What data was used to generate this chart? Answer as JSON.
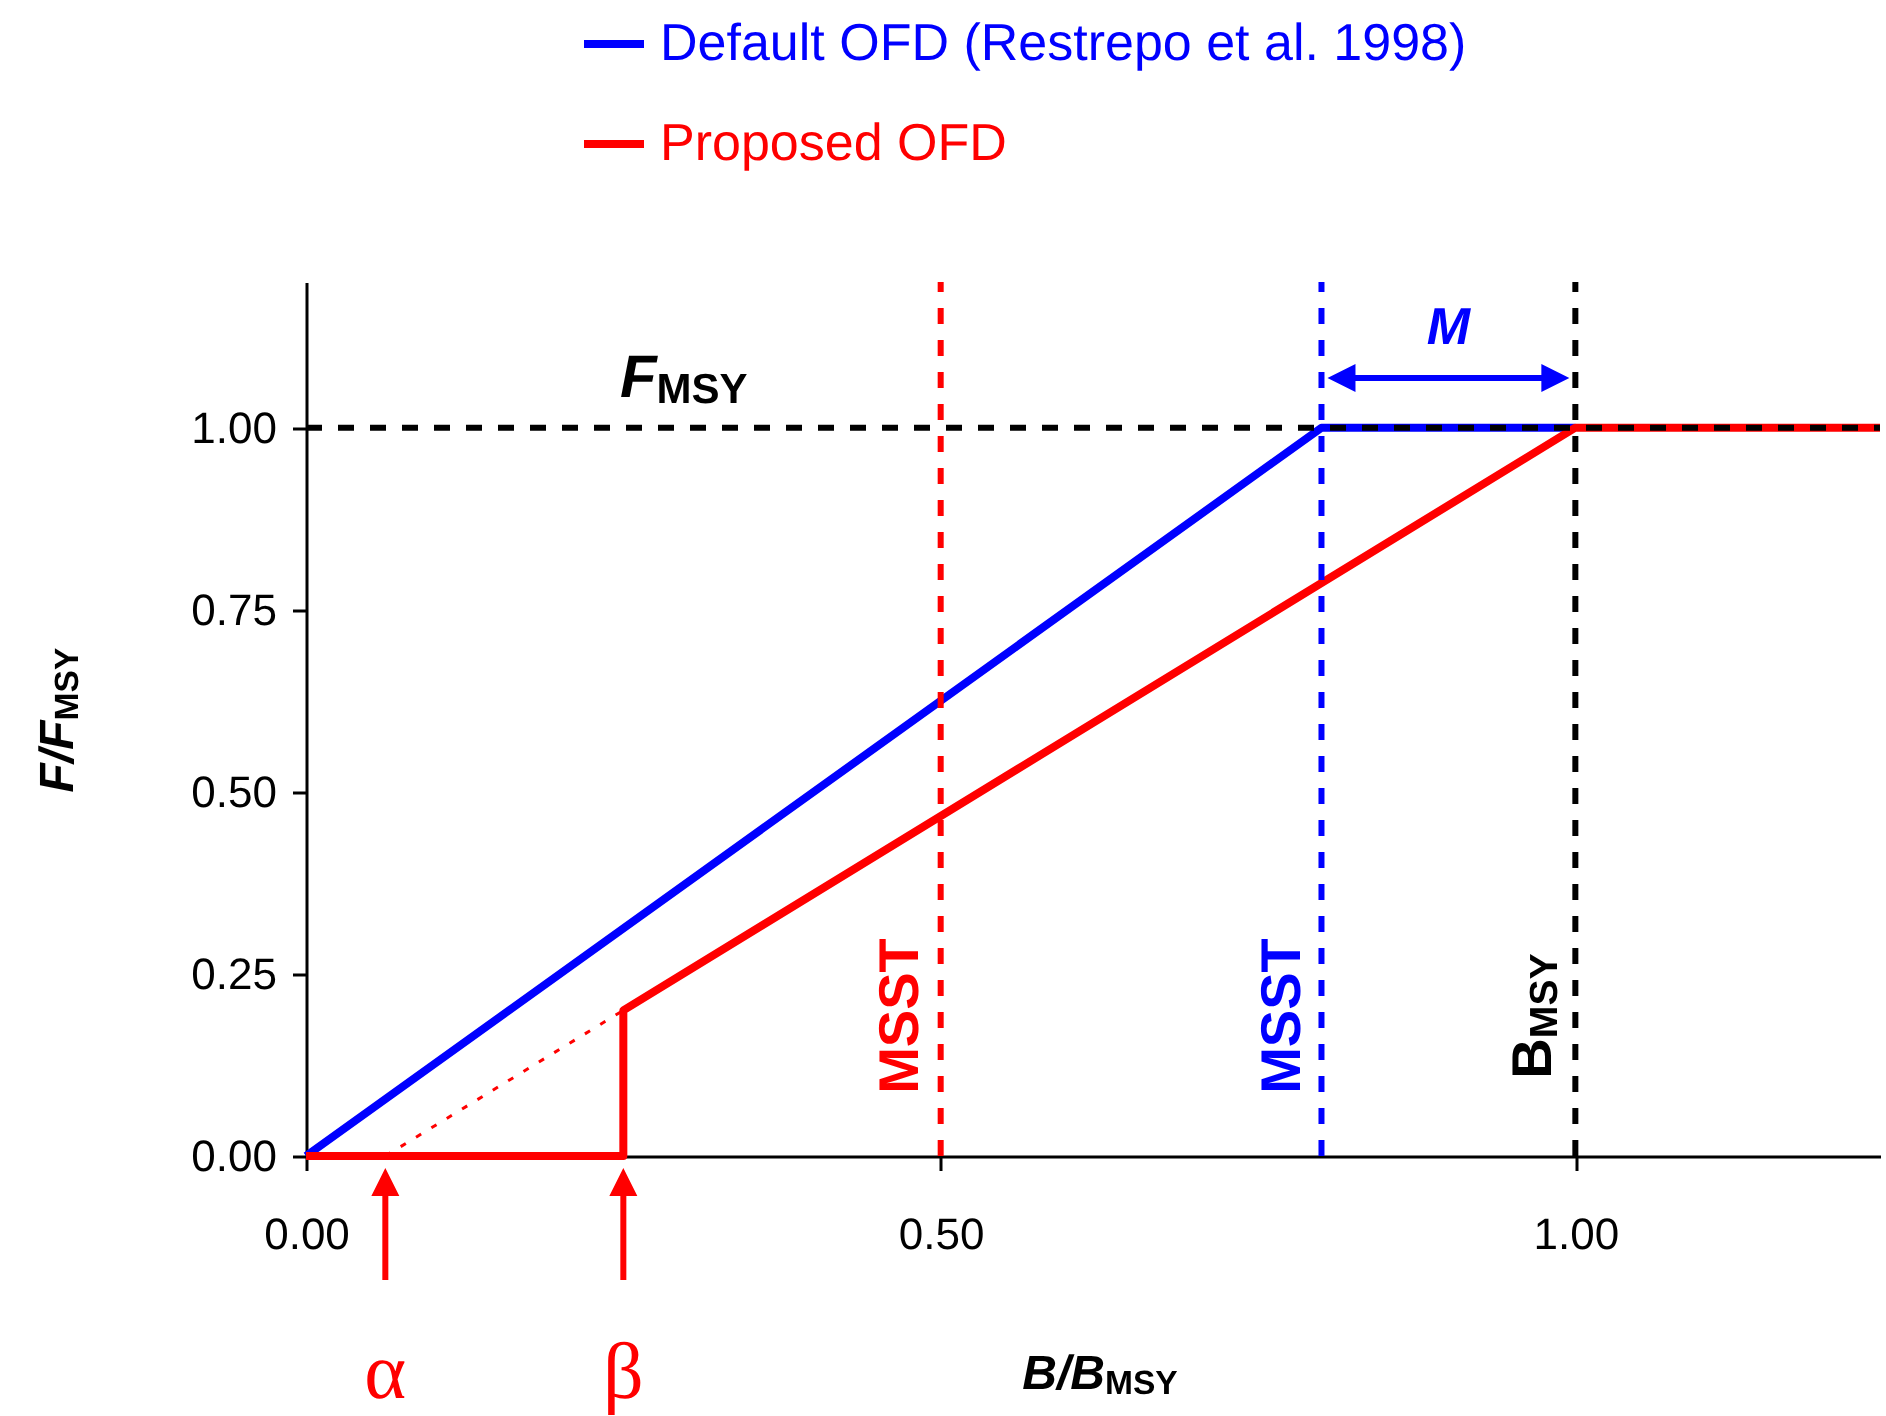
{
  "chart_data": {
    "type": "line",
    "xlabel": "B/B$_{MSY}$",
    "ylabel": "F/F$_{MSY}$",
    "xlim": [
      0,
      1.24
    ],
    "ylim": [
      0,
      1.2
    ],
    "xticks": [
      {
        "value": 0,
        "label": "0.00"
      },
      {
        "value": 0.5,
        "label": "0.50"
      },
      {
        "value": 1,
        "label": "1.00"
      }
    ],
    "yticks": [
      {
        "value": 0,
        "label": "0.00"
      },
      {
        "value": 0.25,
        "label": "0.25"
      },
      {
        "value": 0.5,
        "label": "0.50"
      },
      {
        "value": 0.75,
        "label": "0.75"
      },
      {
        "value": 1,
        "label": "1.00"
      }
    ],
    "series": [
      {
        "name": "Default OFD (Restrepo et al. 1998)",
        "color": "#0000ff",
        "x": [
          0,
          0.8,
          1.0
        ],
        "values": [
          0,
          1,
          1
        ]
      },
      {
        "name": "Proposed OFD",
        "color": "#ff0000",
        "x": [
          0,
          0.25,
          0.25,
          1,
          1.24
        ],
        "values": [
          0,
          0,
          0.2,
          1,
          1
        ]
      },
      {
        "color": "#ff0000",
        "line_style": "dotted",
        "x": [
          0.0625,
          0.25
        ],
        "values": [
          0,
          0.2
        ]
      }
    ],
    "ref_lines": [
      {
        "axis": "y",
        "value": 1,
        "label": "F$_{MSY}$",
        "color": "#000000",
        "line_style": "dashed"
      },
      {
        "axis": "x",
        "value": 0.5,
        "label": "MSST",
        "color": "#ff0000",
        "line_style": "dashed"
      },
      {
        "axis": "x",
        "value": 0.8,
        "label": "MSST",
        "color": "#0000ff",
        "line_style": "dashed"
      },
      {
        "axis": "x",
        "value": 1,
        "label": "B$_{MSY}$",
        "color": "#000000",
        "line_style": "dashed"
      }
    ],
    "annotations": [
      "M",
      "α",
      "β"
    ],
    "legend": "top",
    "grid": false,
    "line_style": "solid",
    "marker": "none"
  }
}
